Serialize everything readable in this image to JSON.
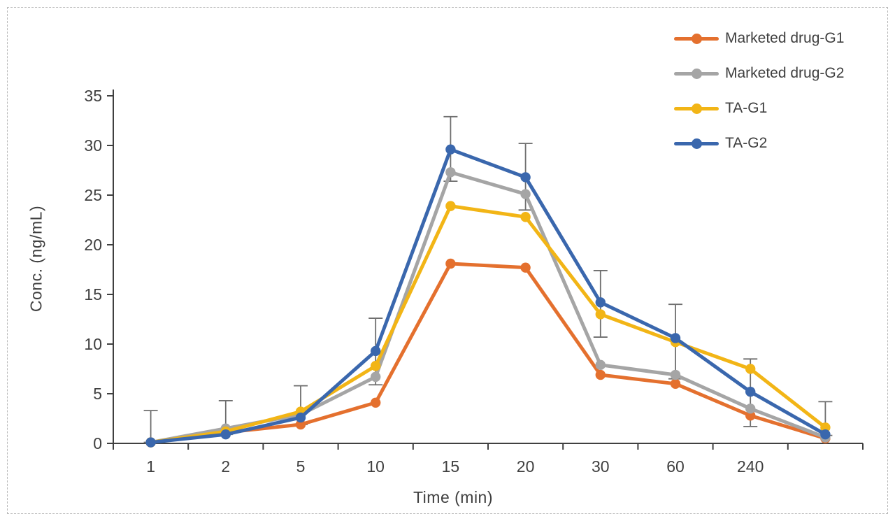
{
  "figure": {
    "background": "#ffffff",
    "border_color": "#b8b8b8",
    "text_color": "#3f3f3f",
    "axis_color": "#404040",
    "error_bar_color": "#6e6e6e"
  },
  "chart_data": {
    "type": "line",
    "title": "",
    "xlabel": "Time (min)",
    "ylabel": "Conc. (ng/mL)",
    "categories": [
      "1",
      "2",
      "5",
      "10",
      "15",
      "20",
      "30",
      "60",
      "240",
      ""
    ],
    "ylim": [
      0,
      35
    ],
    "ytick_step": 5,
    "grid": false,
    "legend_position": "top-right",
    "markers": true,
    "error_bars_shown": true,
    "series": [
      {
        "name": "Marketed drug-G1",
        "color": "#E4702E",
        "values": [
          0.1,
          1.1,
          1.9,
          4.1,
          18.1,
          17.7,
          6.9,
          6.0,
          2.8,
          0.5
        ]
      },
      {
        "name": "Marketed drug-G2",
        "color": "#A5A5A5",
        "values": [
          0.1,
          1.5,
          2.9,
          6.7,
          27.3,
          25.1,
          7.9,
          6.9,
          3.5,
          0.6
        ]
      },
      {
        "name": "TA-G1",
        "color": "#F2B516",
        "values": [
          0.1,
          1.2,
          3.2,
          7.8,
          23.9,
          22.8,
          13.0,
          10.2,
          7.5,
          1.6
        ]
      },
      {
        "name": "TA-G2",
        "color": "#3A67AD",
        "values": [
          0.1,
          0.9,
          2.6,
          9.3,
          29.6,
          26.8,
          14.2,
          10.6,
          5.2,
          0.9
        ]
      }
    ],
    "error_bars": [
      {
        "lo": 0.1,
        "hi": 3.3
      },
      {
        "lo": 0.9,
        "hi": 4.3
      },
      {
        "lo": 1.9,
        "hi": 5.8
      },
      {
        "lo": 5.9,
        "hi": 12.6
      },
      {
        "lo": 26.4,
        "hi": 32.9
      },
      {
        "lo": 23.5,
        "hi": 30.2
      },
      {
        "lo": 10.7,
        "hi": 17.4
      },
      {
        "lo": 6.5,
        "hi": 14.0
      },
      {
        "lo": 1.7,
        "hi": 8.5
      },
      {
        "lo": 0.8,
        "hi": 4.2
      }
    ]
  }
}
